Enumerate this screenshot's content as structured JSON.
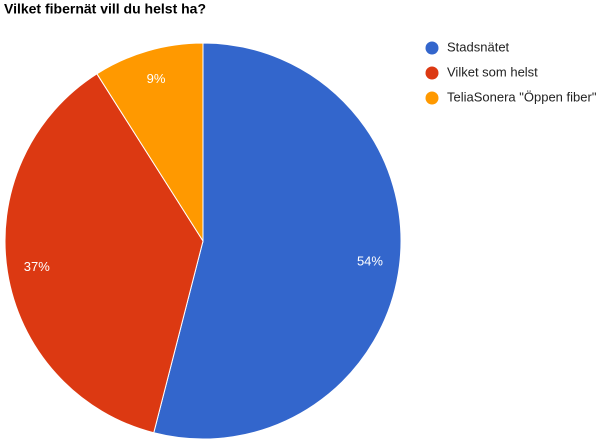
{
  "chart_data": {
    "type": "pie",
    "title": "Vilket fibernät vill du helst ha?",
    "categories": [
      "Stadsnätet",
      "Vilket som helst",
      "TeliaSonera \"Öppen fiber\""
    ],
    "values": [
      54,
      37,
      9
    ],
    "value_labels": [
      "54%",
      "37%",
      "9%"
    ],
    "colors": [
      "#3366cc",
      "#dc3912",
      "#ff9900"
    ],
    "legend": "right"
  }
}
